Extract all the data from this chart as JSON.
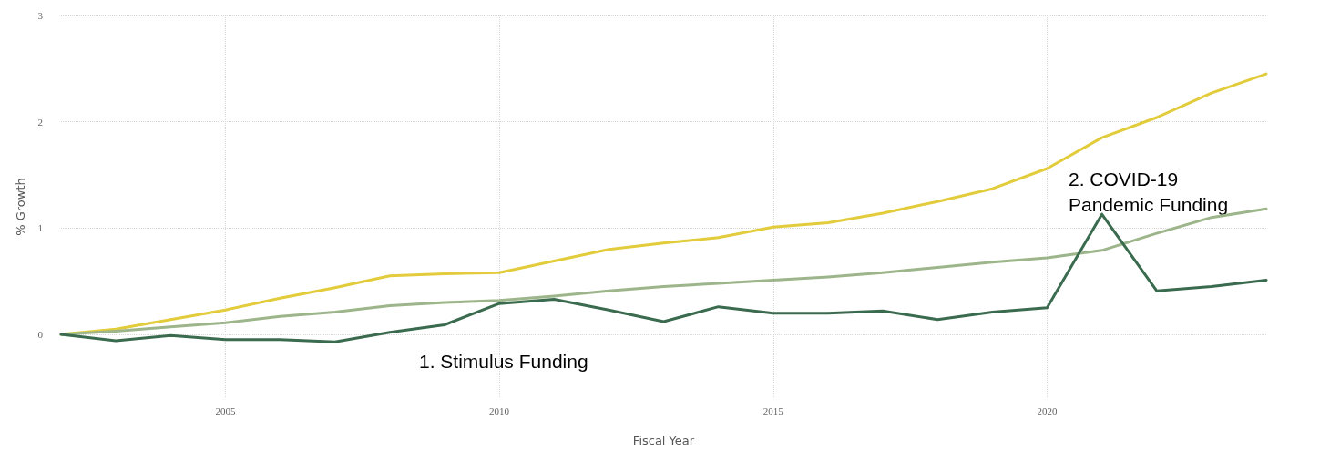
{
  "chart_data": {
    "type": "line",
    "xlabel": "Fiscal Year",
    "ylabel": "% Growth",
    "x": [
      2002,
      2003,
      2004,
      2005,
      2006,
      2007,
      2008,
      2009,
      2010,
      2011,
      2012,
      2013,
      2014,
      2015,
      2016,
      2017,
      2018,
      2019,
      2020,
      2021,
      2022,
      2023,
      2024
    ],
    "series": [
      {
        "color": "#e3cc3b",
        "values": [
          0,
          0.05,
          0.14,
          0.23,
          0.34,
          0.44,
          0.55,
          0.57,
          0.58,
          0.69,
          0.8,
          0.86,
          0.91,
          1.01,
          1.05,
          1.14,
          1.25,
          1.37,
          1.56,
          1.85,
          2.04,
          2.27,
          2.45
        ]
      },
      {
        "color": "#9db58a",
        "values": [
          0,
          0.03,
          0.07,
          0.11,
          0.17,
          0.21,
          0.27,
          0.3,
          0.32,
          0.36,
          0.41,
          0.45,
          0.48,
          0.51,
          0.54,
          0.58,
          0.63,
          0.68,
          0.72,
          0.79,
          0.95,
          1.1,
          1.18
        ]
      },
      {
        "color": "#3a6b4f",
        "values": [
          0,
          -0.06,
          -0.01,
          -0.05,
          -0.05,
          -0.07,
          0.02,
          0.09,
          0.29,
          0.33,
          0.23,
          0.12,
          0.26,
          0.2,
          0.2,
          0.22,
          0.14,
          0.21,
          0.25,
          1.13,
          0.41,
          0.45,
          0.51
        ]
      }
    ],
    "xlim": [
      2002,
      2024
    ],
    "xticks": [
      2005,
      2010,
      2015,
      2020
    ],
    "ylim": [
      -0.6,
      3
    ],
    "yticks": [
      0,
      1,
      2,
      3
    ],
    "grid": true,
    "marker": "none",
    "line_style": "solid",
    "annotations": [
      "1. Stimulus Funding",
      "2. COVID-19\nPandemic Funding"
    ]
  }
}
